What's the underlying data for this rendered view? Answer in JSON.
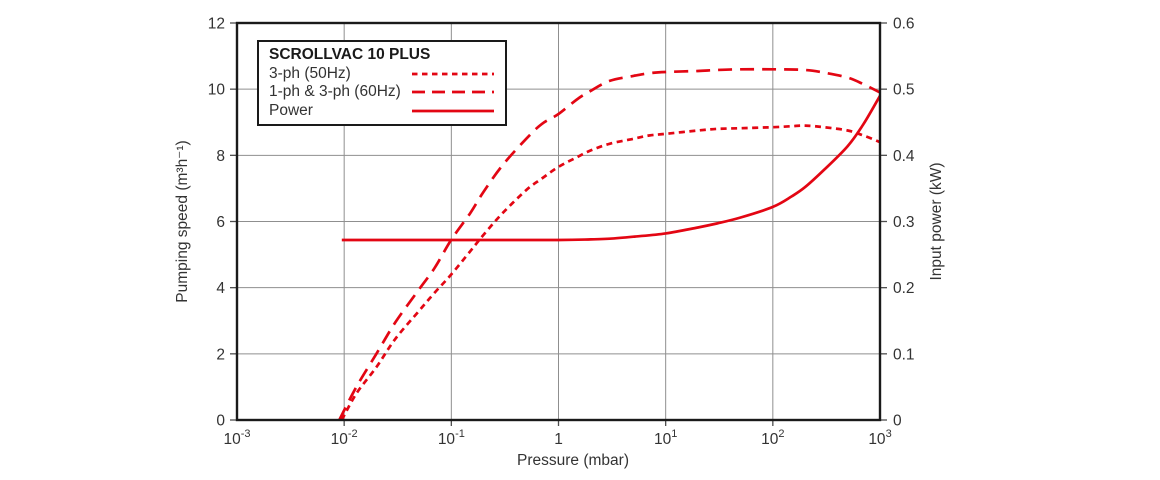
{
  "page": {
    "background": "#ffffff"
  },
  "chart_data": {
    "type": "line",
    "title": "SCROLLVAC 10 PLUS",
    "xlabel": "Pressure (mbar)",
    "x_scale": "log",
    "xlim": [
      0.001,
      1000
    ],
    "grid": true,
    "legend_position": "top-left",
    "colors": {
      "curve": "#e30613",
      "grid": "#8f8f8f",
      "frame": "#1a1a1a",
      "tick": "#4d4d4d",
      "text": "#333333"
    },
    "x_ticks": [
      {
        "value": 0.001,
        "base": "10",
        "exp": "-3"
      },
      {
        "value": 0.01,
        "base": "10",
        "exp": "-2"
      },
      {
        "value": 0.1,
        "base": "10",
        "exp": "-1"
      },
      {
        "value": 1,
        "base": "1",
        "exp": ""
      },
      {
        "value": 10,
        "base": "10",
        "exp": "1"
      },
      {
        "value": 100,
        "base": "10",
        "exp": "2"
      },
      {
        "value": 1000,
        "base": "10",
        "exp": "3"
      }
    ],
    "y_left": {
      "label": "Pumping speed (m³h⁻¹)",
      "min": 0,
      "max": 12,
      "ticks": [
        0,
        2,
        4,
        6,
        8,
        10,
        12
      ]
    },
    "y_right": {
      "label": "Input power (kW)",
      "min": 0,
      "max": 0.6,
      "ticks": [
        0,
        0.1,
        0.2,
        0.3,
        0.4,
        0.5,
        0.6
      ]
    },
    "series": [
      {
        "id": "3ph-50hz",
        "name": "3-ph (50Hz)",
        "axis": "left",
        "style": "dash-short",
        "points": [
          [
            0.0095,
            0
          ],
          [
            0.013,
            0.8
          ],
          [
            0.02,
            1.6
          ],
          [
            0.03,
            2.45
          ],
          [
            0.05,
            3.3
          ],
          [
            0.07,
            3.85
          ],
          [
            0.1,
            4.4
          ],
          [
            0.15,
            5.1
          ],
          [
            0.2,
            5.6
          ],
          [
            0.3,
            6.25
          ],
          [
            0.5,
            6.95
          ],
          [
            0.7,
            7.3
          ],
          [
            1,
            7.65
          ],
          [
            1.5,
            7.95
          ],
          [
            2,
            8.15
          ],
          [
            3,
            8.35
          ],
          [
            5,
            8.5
          ],
          [
            7,
            8.6
          ],
          [
            10,
            8.65
          ],
          [
            20,
            8.75
          ],
          [
            30,
            8.8
          ],
          [
            50,
            8.82
          ],
          [
            100,
            8.85
          ],
          [
            150,
            8.88
          ],
          [
            200,
            8.9
          ],
          [
            300,
            8.85
          ],
          [
            500,
            8.75
          ],
          [
            700,
            8.6
          ],
          [
            1000,
            8.4
          ]
        ]
      },
      {
        "id": "1ph-3ph-60hz",
        "name": "1-ph & 3-ph (60Hz)",
        "axis": "left",
        "style": "dash-long",
        "points": [
          [
            0.009,
            0
          ],
          [
            0.013,
            1.0
          ],
          [
            0.02,
            2.0
          ],
          [
            0.03,
            2.95
          ],
          [
            0.05,
            3.95
          ],
          [
            0.07,
            4.6
          ],
          [
            0.1,
            5.45
          ],
          [
            0.15,
            6.25
          ],
          [
            0.2,
            6.9
          ],
          [
            0.3,
            7.7
          ],
          [
            0.5,
            8.5
          ],
          [
            0.7,
            8.95
          ],
          [
            1,
            9.25
          ],
          [
            1.5,
            9.7
          ],
          [
            2,
            9.95
          ],
          [
            3,
            10.25
          ],
          [
            5,
            10.4
          ],
          [
            7,
            10.48
          ],
          [
            10,
            10.52
          ],
          [
            20,
            10.55
          ],
          [
            30,
            10.58
          ],
          [
            50,
            10.6
          ],
          [
            100,
            10.6
          ],
          [
            200,
            10.58
          ],
          [
            300,
            10.5
          ],
          [
            500,
            10.35
          ],
          [
            700,
            10.15
          ],
          [
            1000,
            9.9
          ]
        ]
      },
      {
        "id": "power",
        "name": "Power",
        "axis": "right",
        "style": "solid",
        "points": [
          [
            0.0095,
            0.272
          ],
          [
            0.05,
            0.272
          ],
          [
            0.2,
            0.272
          ],
          [
            1,
            0.272
          ],
          [
            2,
            0.273
          ],
          [
            3,
            0.274
          ],
          [
            5,
            0.277
          ],
          [
            10,
            0.282
          ],
          [
            20,
            0.291
          ],
          [
            30,
            0.297
          ],
          [
            50,
            0.306
          ],
          [
            100,
            0.322
          ],
          [
            150,
            0.338
          ],
          [
            200,
            0.352
          ],
          [
            300,
            0.378
          ],
          [
            500,
            0.414
          ],
          [
            700,
            0.447
          ],
          [
            1000,
            0.49
          ]
        ]
      }
    ]
  }
}
